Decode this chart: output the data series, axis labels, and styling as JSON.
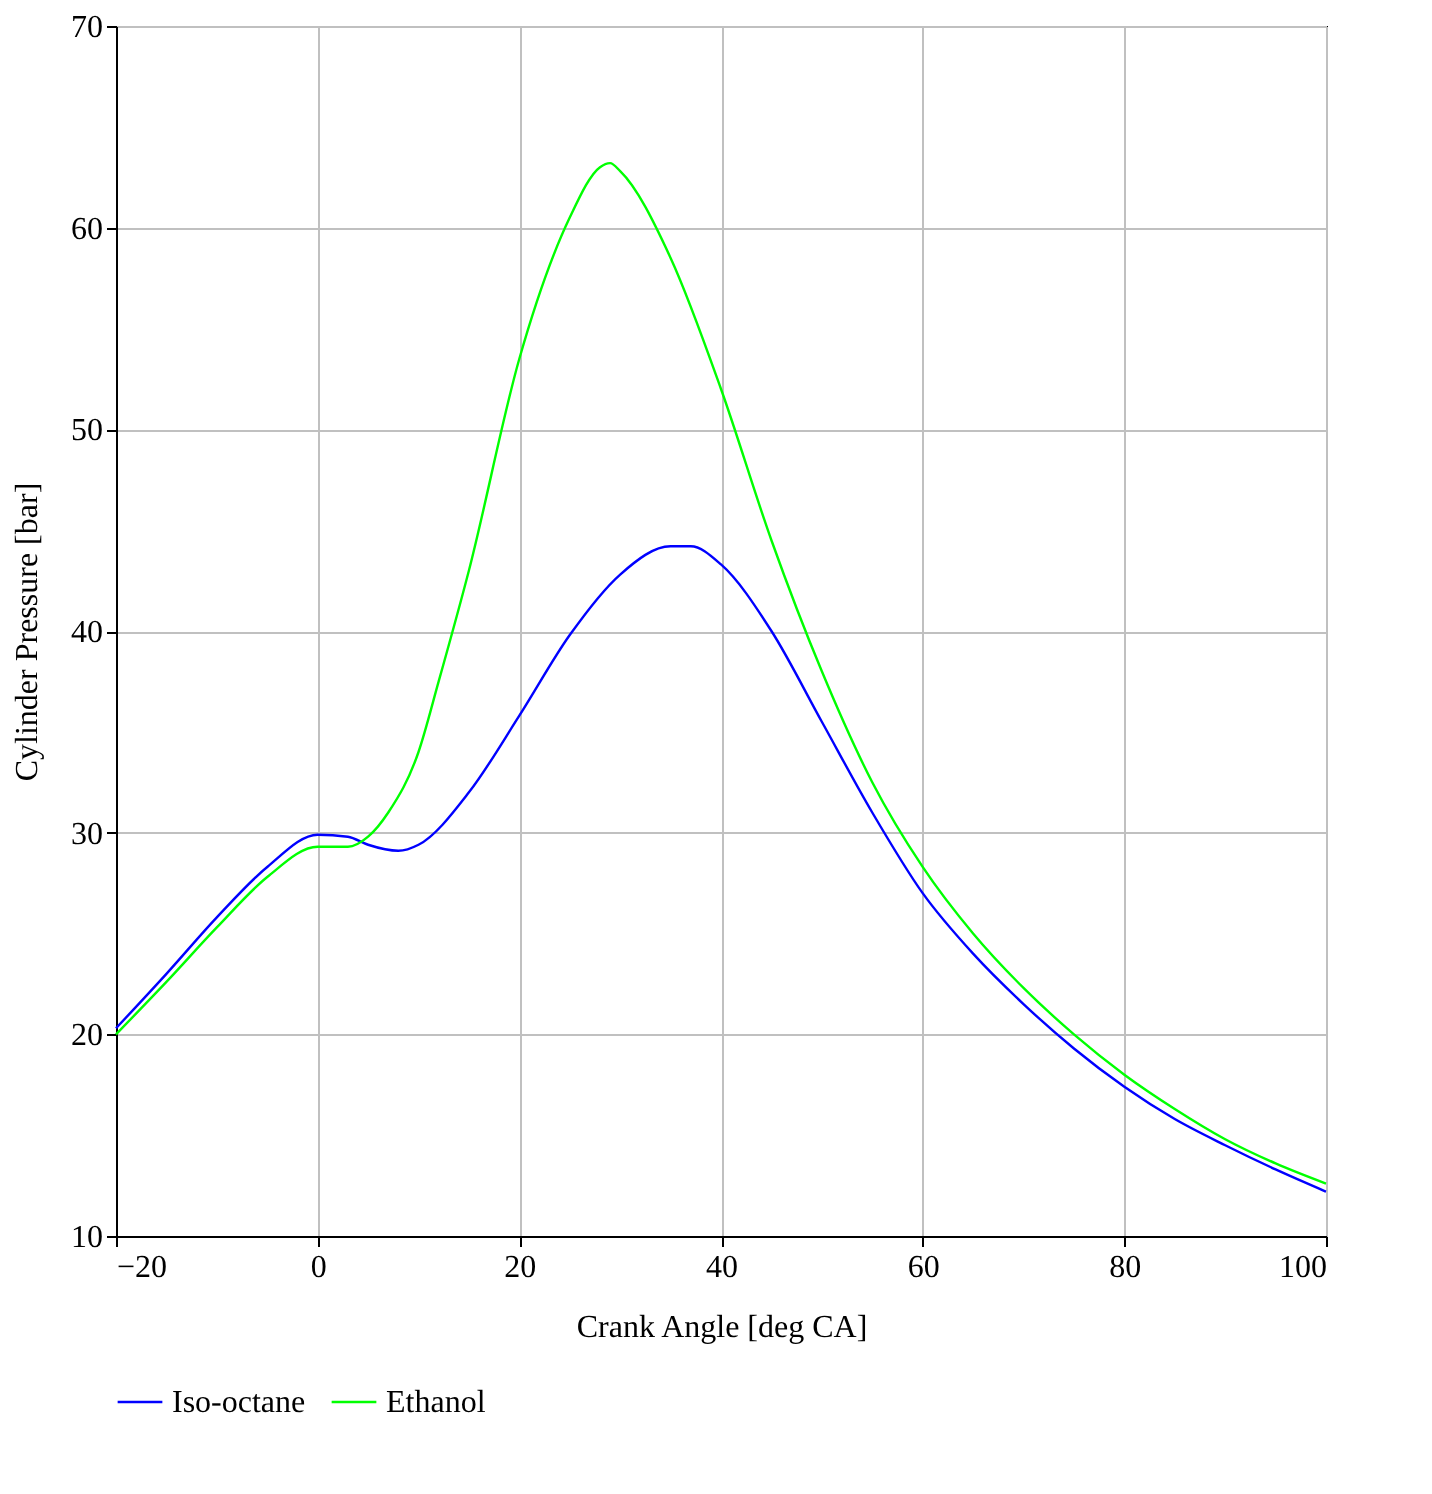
{
  "chart_data": {
    "type": "line",
    "xlabel": "Crank Angle [deg CA]",
    "ylabel": "Cylinder Pressure [bar]",
    "xlim": [
      -20,
      100
    ],
    "ylim": [
      10,
      70
    ],
    "xticks": [
      {
        "value": -20,
        "label": "−20"
      },
      0,
      20,
      40,
      60,
      80,
      100
    ],
    "yticks": [
      10,
      20,
      30,
      40,
      50,
      60,
      70
    ],
    "grid": true,
    "legend": "bottom",
    "line_style": "solid",
    "marker": "none",
    "series": [
      {
        "name": "Iso-octane",
        "color": "#0000ff",
        "x": [
          -20,
          -15,
          -10,
          -5,
          0,
          3,
          5,
          8,
          10,
          15,
          20,
          25,
          30,
          35,
          37,
          40,
          45,
          50,
          55,
          60,
          65,
          70,
          75,
          80,
          85,
          90,
          95,
          100
        ],
        "values": [
          20.3,
          23,
          25.8,
          28.3,
          29.9,
          29.8,
          29.4,
          29.1,
          29.4,
          32,
          35.8,
          39.8,
          42.8,
          44.2,
          44.2,
          43.3,
          40,
          35.5,
          31,
          27,
          24,
          21.5,
          19.3,
          17.4,
          15.8,
          14.5,
          13.3,
          12.2
        ]
      },
      {
        "name": "Ethanol",
        "color": "#00ff00",
        "x": [
          -20,
          -15,
          -10,
          -5,
          0,
          3,
          5,
          7,
          10,
          12,
          15,
          20,
          25,
          28,
          29,
          30,
          35,
          40,
          45,
          50,
          55,
          60,
          65,
          70,
          75,
          80,
          85,
          90,
          95,
          100
        ],
        "values": [
          20,
          22.6,
          25.3,
          27.8,
          29.3,
          29.3,
          29.8,
          31,
          34,
          37.5,
          43,
          53.5,
          60.5,
          63,
          63.2,
          62.8,
          58.5,
          52,
          44.5,
          38,
          32.5,
          28.3,
          25,
          22.3,
          20,
          18,
          16.3,
          14.8,
          13.6,
          12.6
        ]
      }
    ]
  }
}
